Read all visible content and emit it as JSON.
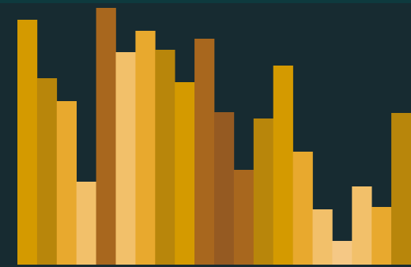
{
  "chart_data": {
    "type": "bar",
    "values": [
      310,
      236,
      207,
      105,
      325,
      269,
      296,
      272,
      231,
      286,
      193,
      120,
      185,
      252,
      143,
      70,
      30,
      99,
      73,
      192
    ],
    "colors": [
      "#d49a00",
      "#b8860b",
      "#e8a92e",
      "#f2c06a",
      "#a8671e",
      "#f2c06a",
      "#e8a92e",
      "#b8860b",
      "#d49a00",
      "#a8671e",
      "#955a22",
      "#a8671e",
      "#b8860b",
      "#d49a00",
      "#e8a92e",
      "#f2c06a",
      "#f5c885",
      "#f2c06a",
      "#e8a92e",
      "#b8860b"
    ],
    "ylim": [
      0,
      335
    ]
  }
}
